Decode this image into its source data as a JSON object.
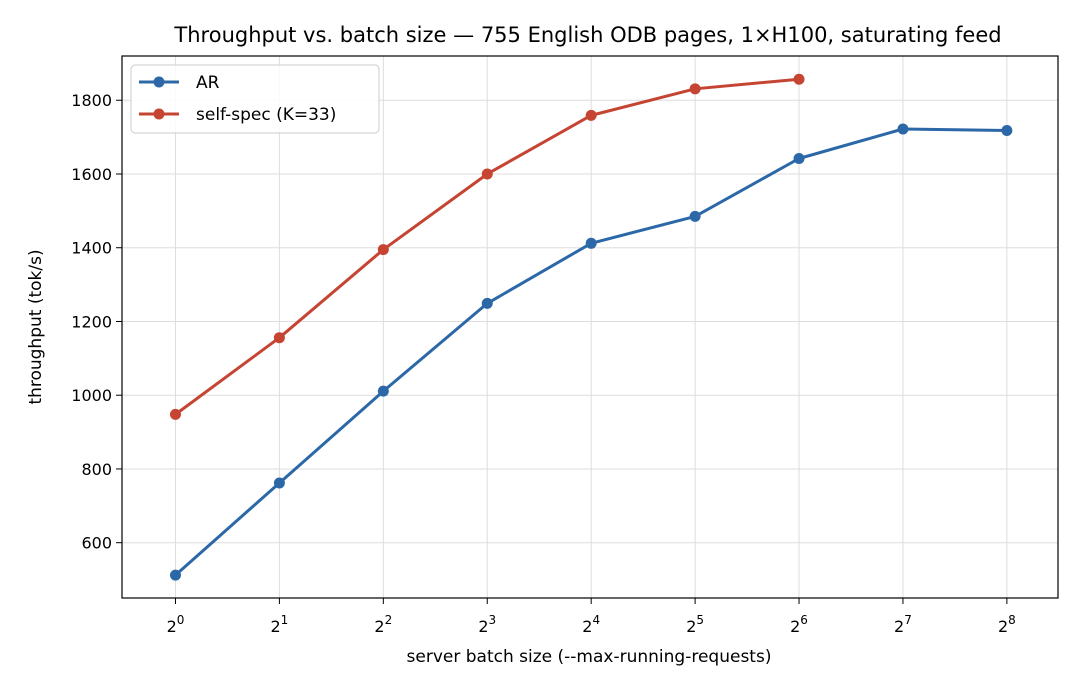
{
  "chart_data": {
    "type": "line",
    "title": "Throughput vs. batch size — 755 English ODB pages, 1×H100, saturating feed",
    "xlabel": "server batch size  (--max-running-requests)",
    "ylabel": "throughput (tok/s)",
    "x_scale": "log2",
    "x_ticks": [
      {
        "value": 1,
        "base": "2",
        "exp": "0"
      },
      {
        "value": 2,
        "base": "2",
        "exp": "1"
      },
      {
        "value": 4,
        "base": "2",
        "exp": "2"
      },
      {
        "value": 8,
        "base": "2",
        "exp": "3"
      },
      {
        "value": 16,
        "base": "2",
        "exp": "4"
      },
      {
        "value": 32,
        "base": "2",
        "exp": "5"
      },
      {
        "value": 64,
        "base": "2",
        "exp": "6"
      },
      {
        "value": 128,
        "base": "2",
        "exp": "7"
      },
      {
        "value": 256,
        "base": "2",
        "exp": "8"
      }
    ],
    "y_ticks": [
      600,
      800,
      1000,
      1200,
      1400,
      1600,
      1800
    ],
    "xlim": [
      0.7,
      360
    ],
    "ylim": [
      450,
      1920
    ],
    "grid": true,
    "legend_position": "upper-left",
    "series": [
      {
        "name": "AR",
        "color": "#2c68a8",
        "x": [
          1,
          2,
          4,
          8,
          16,
          32,
          64,
          128,
          256
        ],
        "y": [
          512,
          762,
          1011,
          1249,
          1412,
          1485,
          1642,
          1722,
          1718
        ]
      },
      {
        "name": "self-spec (K=33)",
        "color": "#c54432",
        "x": [
          1,
          2,
          4,
          8,
          16,
          32,
          64
        ],
        "y": [
          948,
          1156,
          1395,
          1600,
          1759,
          1831,
          1857
        ]
      }
    ]
  }
}
